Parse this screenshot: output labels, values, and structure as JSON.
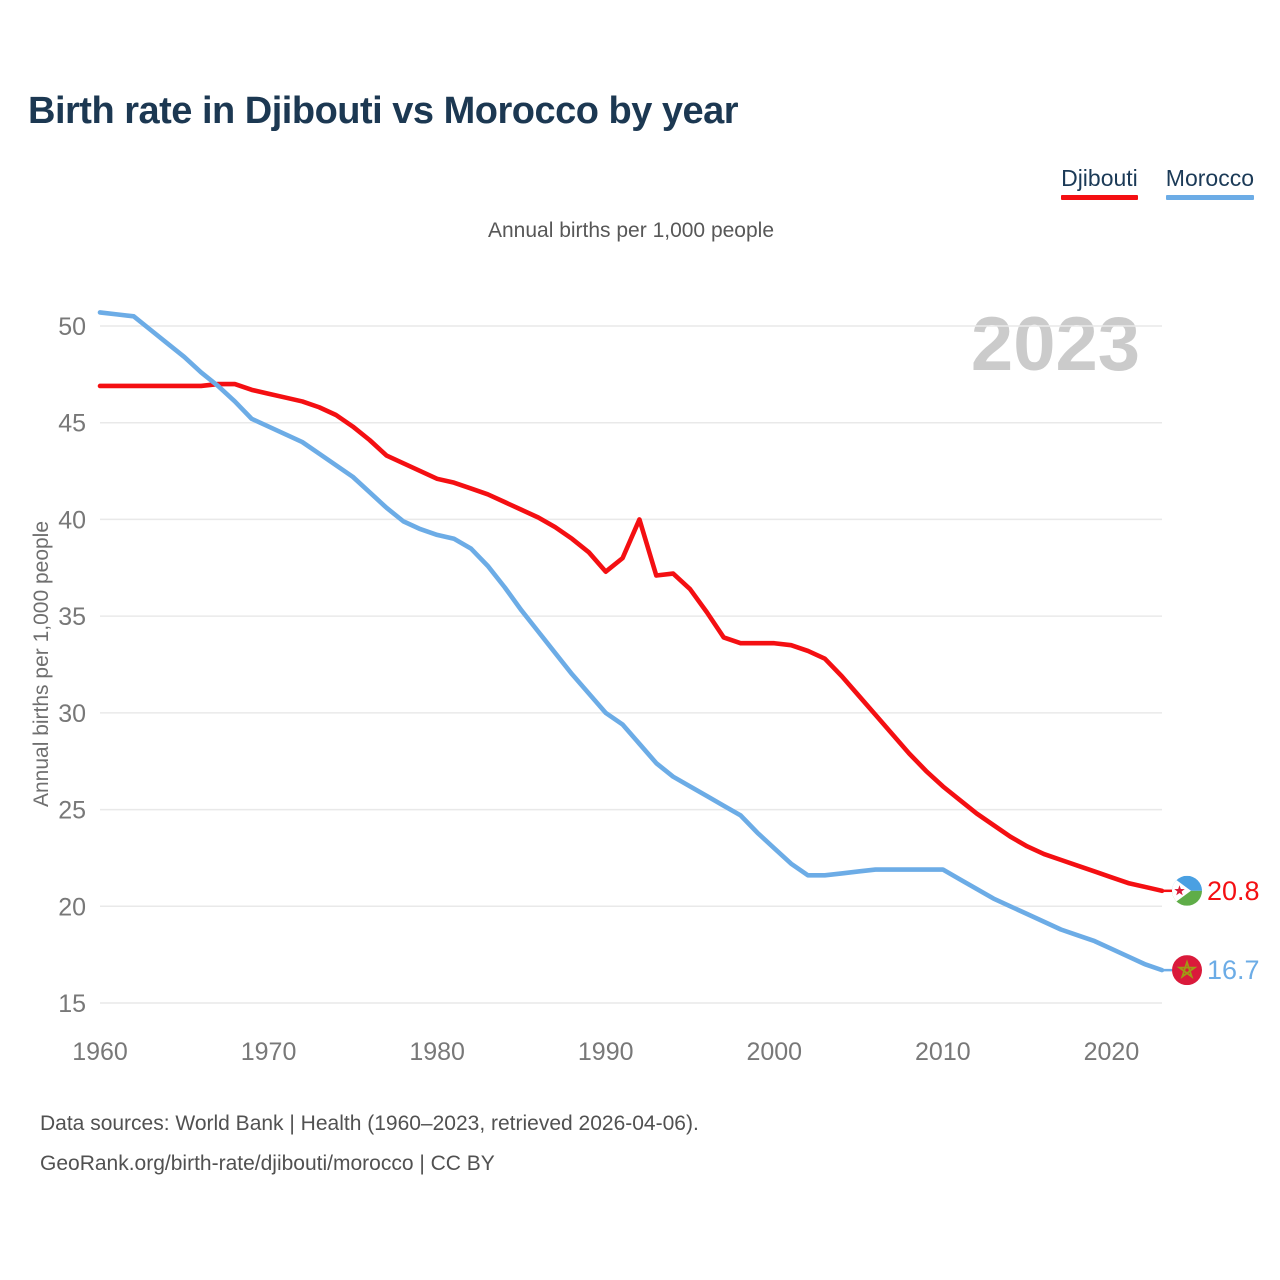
{
  "header": {
    "title": "Birth rate in Djibouti vs Morocco by year",
    "legend": [
      {
        "label": "Djibouti",
        "color": "#f40f12"
      },
      {
        "label": "Morocco",
        "color": "#6cace6"
      }
    ]
  },
  "chart": {
    "subtitle": "Annual births per 1,000 people",
    "y_axis_title": "Annual births per 1,000 people",
    "watermark": "2023"
  },
  "icons": {
    "djibouti": "djibouti-flag-icon",
    "morocco": "morocco-flag-icon"
  },
  "chart_data": {
    "type": "line",
    "title": "Birth rate in Djibouti vs Morocco by year",
    "subtitle": "Annual births per 1,000 people",
    "ylabel": "Annual births per 1,000 people",
    "xlabel": "",
    "xlim": [
      1960,
      2023
    ],
    "ylim": [
      15,
      51
    ],
    "x_ticks": [
      1960,
      1970,
      1980,
      1990,
      2000,
      2010,
      2020
    ],
    "y_ticks": [
      15,
      20,
      25,
      30,
      35,
      40,
      45,
      50
    ],
    "grid": "horizontal",
    "legend_position": "top-right",
    "years": [
      1960,
      1961,
      1962,
      1963,
      1964,
      1965,
      1966,
      1967,
      1968,
      1969,
      1970,
      1971,
      1972,
      1973,
      1974,
      1975,
      1976,
      1977,
      1978,
      1979,
      1980,
      1981,
      1982,
      1983,
      1984,
      1985,
      1986,
      1987,
      1988,
      1989,
      1990,
      1991,
      1992,
      1993,
      1994,
      1995,
      1996,
      1997,
      1998,
      1999,
      2000,
      2001,
      2002,
      2003,
      2004,
      2005,
      2006,
      2007,
      2008,
      2009,
      2010,
      2011,
      2012,
      2013,
      2014,
      2015,
      2016,
      2017,
      2018,
      2019,
      2020,
      2021,
      2022,
      2023
    ],
    "series": [
      {
        "name": "Djibouti",
        "color": "#f40f12",
        "end_label": "20.8",
        "values": [
          46.9,
          46.9,
          46.9,
          46.9,
          46.9,
          46.9,
          46.9,
          47.0,
          47.0,
          46.7,
          46.5,
          46.3,
          46.1,
          45.8,
          45.4,
          44.8,
          44.1,
          43.3,
          42.9,
          42.5,
          42.1,
          41.9,
          41.6,
          41.3,
          40.9,
          40.5,
          40.1,
          39.6,
          39.0,
          38.3,
          37.3,
          38.0,
          40.0,
          37.1,
          37.2,
          36.4,
          35.2,
          33.9,
          33.6,
          33.6,
          33.6,
          33.5,
          33.2,
          32.8,
          31.9,
          30.9,
          29.9,
          28.9,
          27.9,
          27.0,
          26.2,
          25.5,
          24.8,
          24.2,
          23.6,
          23.1,
          22.7,
          22.4,
          22.1,
          21.8,
          21.5,
          21.2,
          21.0,
          20.8
        ]
      },
      {
        "name": "Morocco",
        "color": "#6cace6",
        "end_label": "16.7",
        "values": [
          50.7,
          50.6,
          50.5,
          49.8,
          49.1,
          48.4,
          47.6,
          46.9,
          46.1,
          45.2,
          44.8,
          44.4,
          44.0,
          43.4,
          42.8,
          42.2,
          41.4,
          40.6,
          39.9,
          39.5,
          39.2,
          39.0,
          38.5,
          37.6,
          36.5,
          35.3,
          34.2,
          33.1,
          32.0,
          31.0,
          30.0,
          29.4,
          28.4,
          27.4,
          26.7,
          26.2,
          25.7,
          25.2,
          24.7,
          23.8,
          23.0,
          22.2,
          21.6,
          21.6,
          21.7,
          21.8,
          21.9,
          21.9,
          21.9,
          21.9,
          21.9,
          21.4,
          20.9,
          20.4,
          20.0,
          19.6,
          19.2,
          18.8,
          18.5,
          18.2,
          17.8,
          17.4,
          17.0,
          16.7
        ]
      }
    ]
  },
  "footer": {
    "line1": "Data sources: World Bank | Health (1960–2023, retrieved 2026-04-06).",
    "line2": "GeoRank.org/birth-rate/djibouti/morocco | CC BY"
  }
}
